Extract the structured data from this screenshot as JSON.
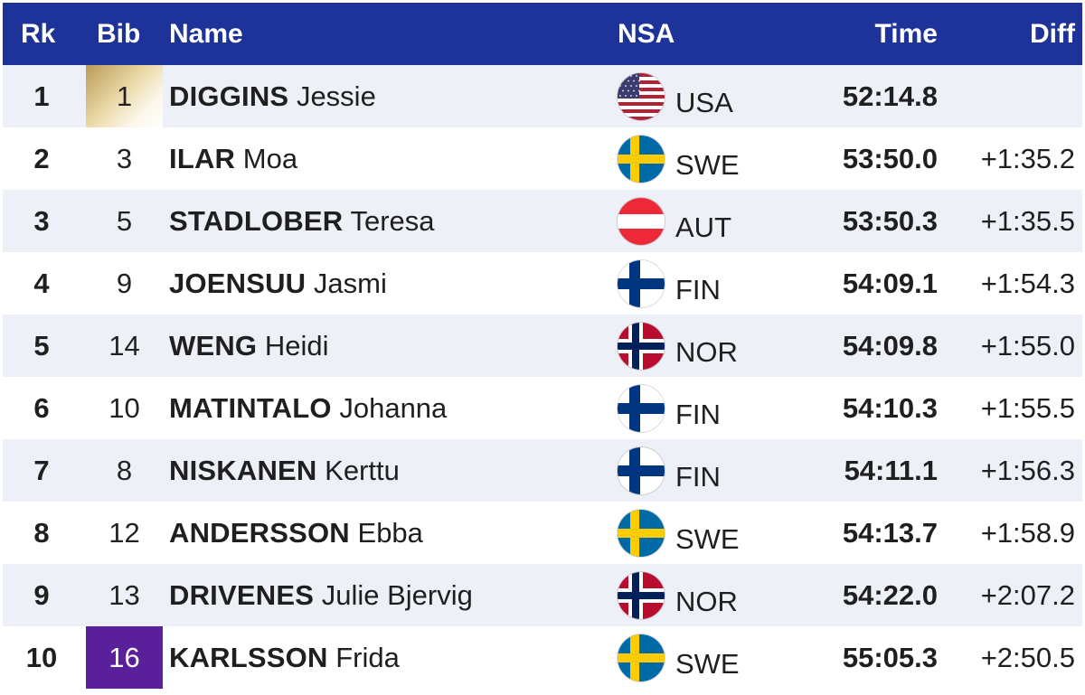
{
  "header": {
    "rank": "Rk",
    "bib": "Bib",
    "name": "Name",
    "nsa": "NSA",
    "time": "Time",
    "diff": "Diff"
  },
  "colors": {
    "header_bg": "#1e3399",
    "row_alt_bg": "#eef0f7",
    "bib_purple": "#5a1f9a",
    "bib_gold": "#d4bc7d"
  },
  "rows": [
    {
      "rank": "1",
      "bib": "1",
      "bib_style": "gold",
      "last": "DIGGINS",
      "first": "Jessie",
      "nsa": "USA",
      "flag": "usa-flag-icon",
      "time": "52:14.8",
      "diff": ""
    },
    {
      "rank": "2",
      "bib": "3",
      "bib_style": "",
      "last": "ILAR",
      "first": "Moa",
      "nsa": "SWE",
      "flag": "sweden-flag-icon",
      "time": "53:50.0",
      "diff": "+1:35.2"
    },
    {
      "rank": "3",
      "bib": "5",
      "bib_style": "",
      "last": "STADLOBER",
      "first": "Teresa",
      "nsa": "AUT",
      "flag": "austria-flag-icon",
      "time": "53:50.3",
      "diff": "+1:35.5"
    },
    {
      "rank": "4",
      "bib": "9",
      "bib_style": "",
      "last": "JOENSUU",
      "first": "Jasmi",
      "nsa": "FIN",
      "flag": "finland-flag-icon",
      "time": "54:09.1",
      "diff": "+1:54.3"
    },
    {
      "rank": "5",
      "bib": "14",
      "bib_style": "",
      "last": "WENG",
      "first": "Heidi",
      "nsa": "NOR",
      "flag": "norway-flag-icon",
      "time": "54:09.8",
      "diff": "+1:55.0"
    },
    {
      "rank": "6",
      "bib": "10",
      "bib_style": "",
      "last": "MATINTALO",
      "first": "Johanna",
      "nsa": "FIN",
      "flag": "finland-flag-icon",
      "time": "54:10.3",
      "diff": "+1:55.5"
    },
    {
      "rank": "7",
      "bib": "8",
      "bib_style": "",
      "last": "NISKANEN",
      "first": "Kerttu",
      "nsa": "FIN",
      "flag": "finland-flag-icon",
      "time": "54:11.1",
      "diff": "+1:56.3"
    },
    {
      "rank": "8",
      "bib": "12",
      "bib_style": "",
      "last": "ANDERSSON",
      "first": "Ebba",
      "nsa": "SWE",
      "flag": "sweden-flag-icon",
      "time": "54:13.7",
      "diff": "+1:58.9"
    },
    {
      "rank": "9",
      "bib": "13",
      "bib_style": "",
      "last": "DRIVENES",
      "first": "Julie Bjervig",
      "nsa": "NOR",
      "flag": "norway-flag-icon",
      "time": "54:22.0",
      "diff": "+2:07.2"
    },
    {
      "rank": "10",
      "bib": "16",
      "bib_style": "purple",
      "last": "KARLSSON",
      "first": "Frida",
      "nsa": "SWE",
      "flag": "sweden-flag-icon",
      "time": "55:05.3",
      "diff": "+2:50.5"
    }
  ]
}
